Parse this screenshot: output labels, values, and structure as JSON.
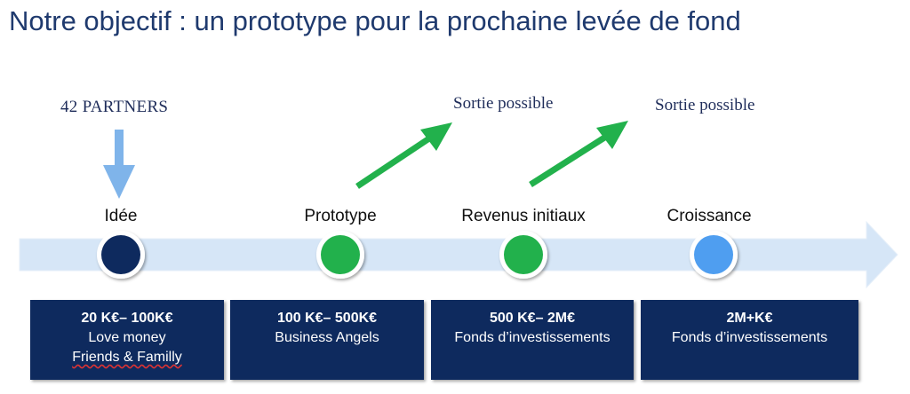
{
  "title": "Notre objectif : un prototype pour la prochaine levée de fond",
  "partners_label": "42 PARTNERS",
  "exits": [
    {
      "label": "Sortie possible"
    },
    {
      "label": "Sortie possible"
    }
  ],
  "stages": [
    {
      "label": "Idée",
      "color": "#0e2a5e",
      "amount": "20 K€– 100K€",
      "line1": "Love money",
      "line2": "Friends & Familly"
    },
    {
      "label": "Prototype",
      "color": "#22b14c",
      "amount": "100 K€– 500K€",
      "line1": "Business Angels",
      "line2": ""
    },
    {
      "label": "Revenus initiaux",
      "color": "#22b14c",
      "amount": "500 K€– 2M€",
      "line1": "Fonds d’investissements",
      "line2": ""
    },
    {
      "label": "Croissance",
      "color": "#4f9ef0",
      "amount": "2M+K€",
      "line1": "Fonds d’investissements",
      "line2": ""
    }
  ],
  "colors": {
    "timeline": "#d6e6f7",
    "down_arrow": "#7fb4ea",
    "exit_arrow": "#22b14c",
    "box": "#0e2a5e"
  }
}
